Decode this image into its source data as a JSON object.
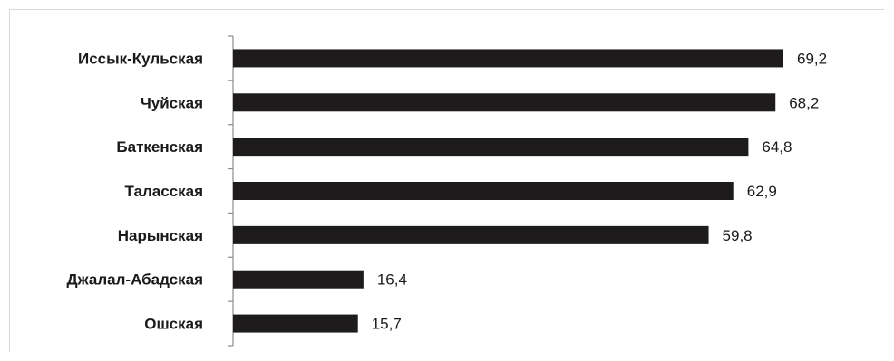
{
  "chart_data": {
    "type": "bar",
    "orientation": "horizontal",
    "categories": [
      "Иссык-Кульская",
      "Чуйская",
      "Баткенская",
      "Таласская",
      "Нарынская",
      "Джалал-Абадская",
      "Ошская"
    ],
    "values": [
      69.2,
      68.2,
      64.8,
      62.9,
      59.8,
      16.4,
      15.7
    ],
    "value_labels": [
      "69,2",
      "68,2",
      "64,8",
      "62,9",
      "59,8",
      "16,4",
      "15,7"
    ],
    "title": "",
    "xlabel": "",
    "ylabel": "",
    "xlim": [
      0,
      70
    ],
    "grid": false,
    "legend": "none",
    "bar_color": "#1e1b1c"
  }
}
